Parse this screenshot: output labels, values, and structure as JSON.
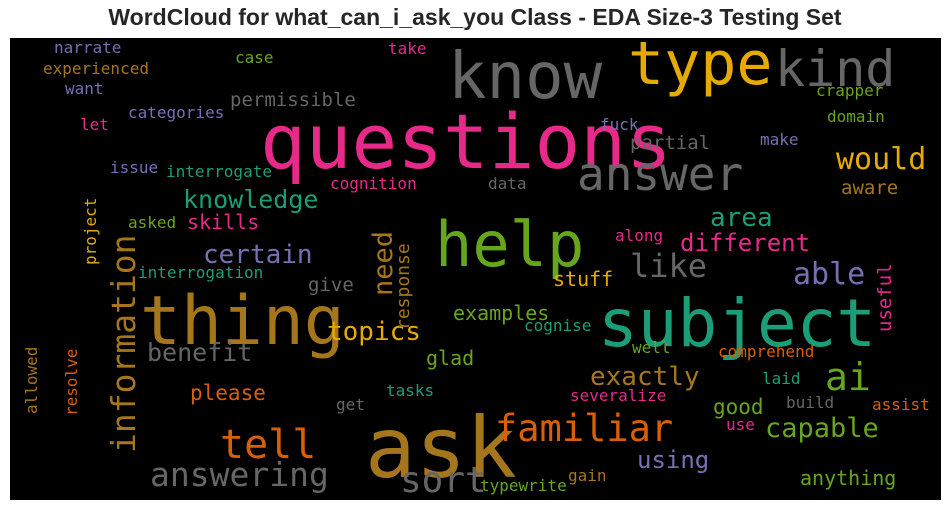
{
  "chart_data": {
    "type": "wordcloud",
    "title": "WordCloud for what_can_i_ask_you Class - EDA Size-3 Testing Set",
    "background": "#000000",
    "palette": {
      "pink": "#e7298a",
      "gold": "#e6ab02",
      "teal": "#1b9e77",
      "green": "#66a61e",
      "orange": "#d95f02",
      "purple": "#7570b3",
      "gray": "#666666",
      "brown": "#a6761d"
    },
    "words": [
      {
        "text": "questions",
        "color": "#e7298a",
        "weight": 1.0
      },
      {
        "text": "ask",
        "color": "#a6761d",
        "weight": 0.97
      },
      {
        "text": "thing",
        "color": "#a6761d",
        "weight": 0.9
      },
      {
        "text": "subject",
        "color": "#1b9e77",
        "weight": 0.85
      },
      {
        "text": "know",
        "color": "#666666",
        "weight": 0.85
      },
      {
        "text": "type",
        "color": "#e6ab02",
        "weight": 0.85
      },
      {
        "text": "help",
        "color": "#66a61e",
        "weight": 0.85
      },
      {
        "text": "kind",
        "color": "#666666",
        "weight": 0.68
      },
      {
        "text": "answer",
        "color": "#666666",
        "weight": 0.62
      },
      {
        "text": "information",
        "color": "#a6761d",
        "weight": 0.5
      },
      {
        "text": "familiar",
        "color": "#d95f02",
        "weight": 0.5
      },
      {
        "text": "tell",
        "color": "#d95f02",
        "weight": 0.5
      },
      {
        "text": "answering",
        "color": "#666666",
        "weight": 0.46
      },
      {
        "text": "sort",
        "color": "#666666",
        "weight": 0.46
      },
      {
        "text": "ai",
        "color": "#66a61e",
        "weight": 0.46
      },
      {
        "text": "would",
        "color": "#e6ab02",
        "weight": 0.38
      },
      {
        "text": "like",
        "color": "#666666",
        "weight": 0.4
      },
      {
        "text": "able",
        "color": "#7570b3",
        "weight": 0.38
      },
      {
        "text": "capable",
        "color": "#66a61e",
        "weight": 0.38
      },
      {
        "text": "exactly",
        "color": "#a6761d",
        "weight": 0.36
      },
      {
        "text": "using",
        "color": "#7570b3",
        "weight": 0.33
      },
      {
        "text": "knowledge",
        "color": "#1b9e77",
        "weight": 0.33
      },
      {
        "text": "certain",
        "color": "#7570b3",
        "weight": 0.33
      },
      {
        "text": "topics",
        "color": "#e6ab02",
        "weight": 0.33
      },
      {
        "text": "benefit",
        "color": "#666666",
        "weight": 0.33
      },
      {
        "text": "need",
        "color": "#a6761d",
        "weight": 0.33
      },
      {
        "text": "different",
        "color": "#e7298a",
        "weight": 0.3
      },
      {
        "text": "area",
        "color": "#1b9e77",
        "weight": 0.3
      },
      {
        "text": "skills",
        "color": "#e7298a",
        "weight": 0.27
      },
      {
        "text": "please",
        "color": "#d95f02",
        "weight": 0.27
      },
      {
        "text": "examples",
        "color": "#66a61e",
        "weight": 0.27
      },
      {
        "text": "good",
        "color": "#66a61e",
        "weight": 0.27
      },
      {
        "text": "anything",
        "color": "#66a61e",
        "weight": 0.27
      },
      {
        "text": "glad",
        "color": "#66a61e",
        "weight": 0.27
      },
      {
        "text": "stuff",
        "color": "#e6ab02",
        "weight": 0.27
      },
      {
        "text": "partial",
        "color": "#666666",
        "weight": 0.26
      },
      {
        "text": "aware",
        "color": "#a6761d",
        "weight": 0.26
      },
      {
        "text": "permissible",
        "color": "#666666",
        "weight": 0.24
      },
      {
        "text": "give",
        "color": "#666666",
        "weight": 0.24
      },
      {
        "text": "response",
        "color": "#a6761d",
        "weight": 0.24
      },
      {
        "text": "useful",
        "color": "#e7298a",
        "weight": 0.24
      },
      {
        "text": "project",
        "color": "#e6ab02",
        "weight": 0.2
      },
      {
        "text": "experienced",
        "color": "#a6761d",
        "weight": 0.2
      },
      {
        "text": "narrate",
        "color": "#7570b3",
        "weight": 0.2
      },
      {
        "text": "want",
        "color": "#7570b3",
        "weight": 0.2
      },
      {
        "text": "categories",
        "color": "#7570b3",
        "weight": 0.2
      },
      {
        "text": "let",
        "color": "#e7298a",
        "weight": 0.2
      },
      {
        "text": "issue",
        "color": "#7570b3",
        "weight": 0.2
      },
      {
        "text": "interrogate",
        "color": "#1b9e77",
        "weight": 0.2
      },
      {
        "text": "asked",
        "color": "#66a61e",
        "weight": 0.2
      },
      {
        "text": "interrogation",
        "color": "#1b9e77",
        "weight": 0.2
      },
      {
        "text": "cognition",
        "color": "#e7298a",
        "weight": 0.2
      },
      {
        "text": "data",
        "color": "#666666",
        "weight": 0.2
      },
      {
        "text": "case",
        "color": "#66a61e",
        "weight": 0.2
      },
      {
        "text": "take",
        "color": "#e7298a",
        "weight": 0.2
      },
      {
        "text": "crapper",
        "color": "#66a61e",
        "weight": 0.2
      },
      {
        "text": "domain",
        "color": "#66a61e",
        "weight": 0.2
      },
      {
        "text": "fuck",
        "color": "#7570b3",
        "weight": 0.2
      },
      {
        "text": "make",
        "color": "#7570b3",
        "weight": 0.2
      },
      {
        "text": "along",
        "color": "#e7298a",
        "weight": 0.2
      },
      {
        "text": "cognise",
        "color": "#1b9e77",
        "weight": 0.2
      },
      {
        "text": "well",
        "color": "#66a61e",
        "weight": 0.2
      },
      {
        "text": "comprehend",
        "color": "#d95f02",
        "weight": 0.2
      },
      {
        "text": "laid",
        "color": "#1b9e77",
        "weight": 0.2
      },
      {
        "text": "build",
        "color": "#666666",
        "weight": 0.2
      },
      {
        "text": "assist",
        "color": "#d95f02",
        "weight": 0.2
      },
      {
        "text": "severalize",
        "color": "#e7298a",
        "weight": 0.2
      },
      {
        "text": "tasks",
        "color": "#1b9e77",
        "weight": 0.2
      },
      {
        "text": "get",
        "color": "#666666",
        "weight": 0.2
      },
      {
        "text": "use",
        "color": "#e7298a",
        "weight": 0.2
      },
      {
        "text": "gain",
        "color": "#a6761d",
        "weight": 0.2
      },
      {
        "text": "typewrite",
        "color": "#66a61e",
        "weight": 0.2
      },
      {
        "text": "allowed",
        "color": "#a6761d",
        "weight": 0.2
      },
      {
        "text": "resolve",
        "color": "#d95f02",
        "weight": 0.2
      }
    ]
  }
}
